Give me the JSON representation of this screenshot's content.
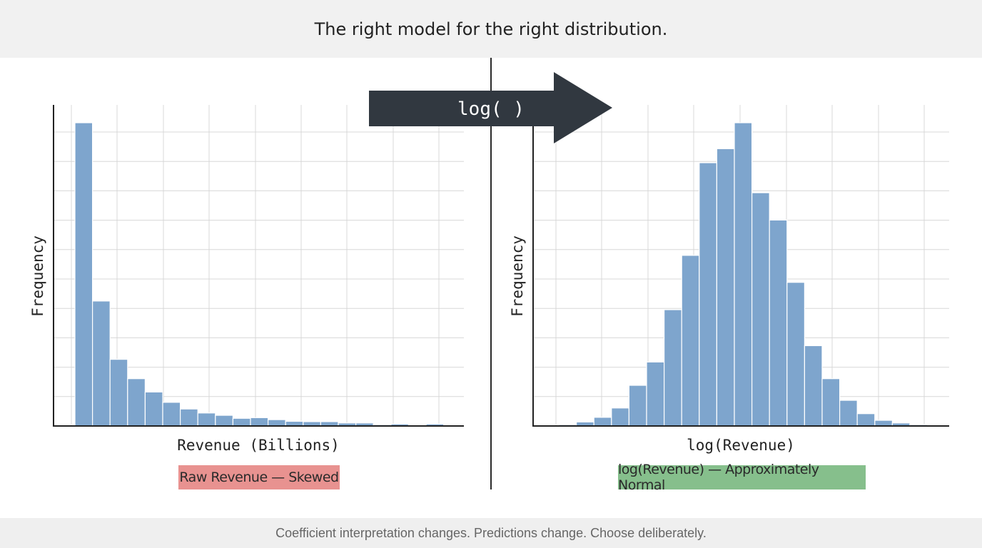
{
  "header": {
    "title": "The right model for the right distribution."
  },
  "footer": {
    "note": "Coefficient interpretation changes. Predictions change. Choose deliberately."
  },
  "arrow": {
    "label": "log( )"
  },
  "colors": {
    "bar": "#7ea5cd",
    "bar_stroke": "#ffffff",
    "grid": "#d8d8d8",
    "axis": "#222222",
    "arrow": "#313840"
  },
  "chart_data": [
    {
      "type": "bar",
      "title": "",
      "xlabel": "Revenue (Billions)",
      "ylabel": "Frequency",
      "caption": "Raw Revenue — Skewed",
      "grid": true,
      "ylim": [
        0,
        100
      ],
      "bins": 21,
      "values": [
        91,
        37.5,
        20,
        14.2,
        10.2,
        7.1,
        5.1,
        3.9,
        3.2,
        2.3,
        2.5,
        1.9,
        1.4,
        1.3,
        1.3,
        0.9,
        0.9,
        0.4,
        0.6,
        0,
        0.6
      ]
    },
    {
      "type": "bar",
      "title": "",
      "xlabel": "log(Revenue)",
      "ylabel": "Frequency",
      "caption": "log(Revenue) — Approximately Normal",
      "grid": true,
      "ylim": [
        0,
        100
      ],
      "bins": 21,
      "values": [
        0.4,
        1.2,
        2.6,
        5.4,
        12.2,
        19.2,
        34.9,
        51.2,
        79,
        83.2,
        91,
        70,
        61.8,
        43.1,
        24.1,
        14.2,
        7.7,
        3.7,
        1.7,
        0.9,
        0.4
      ]
    }
  ]
}
